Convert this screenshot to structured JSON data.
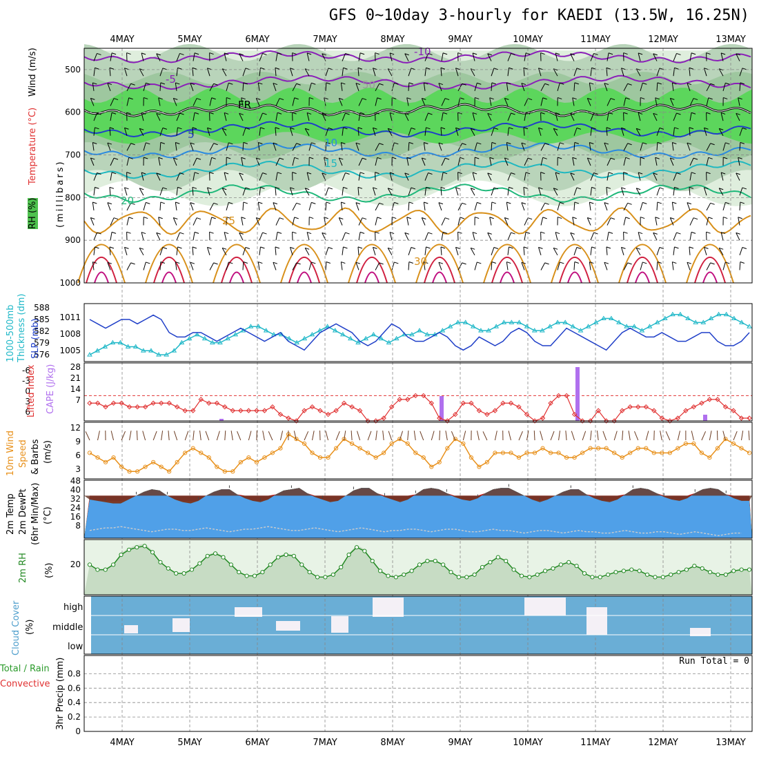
{
  "title": "GFS 0~10day 3-hourly for KAEDI (13.5W, 16.25N)",
  "date_labels": [
    "4MAY",
    "5MAY",
    "6MAY",
    "7MAY",
    "8MAY",
    "9MAY",
    "10MAY",
    "11MAY",
    "12MAY",
    "13MAY"
  ],
  "run_total": "Run Total = 0",
  "colors": {
    "rh_green": "#5cd65c",
    "rh_light": "#dfeedd",
    "rh_mid": "#b9d4ba",
    "slp": "#1f3fc8",
    "thickness": "#20b8c8",
    "lifted_index": "#e03030",
    "cape": "#b070ee",
    "wind10m": "#e8901a",
    "barb": "#000000",
    "rh2m": "#228822",
    "cloud_blue": "#6aaed6",
    "cloud_white": "#f4f0f6",
    "temp_warm": "#a01010",
    "temp_dark": "#6a3a2a"
  },
  "panels": {
    "upper": {
      "labels": [
        "Wind (m/s)",
        "Temperature (°C)",
        "RH (%)",
        "(millibars)"
      ],
      "y_ticks": [
        "500",
        "600",
        "700",
        "800",
        "900",
        "1000"
      ],
      "contour_labels": [
        "-10",
        "-5",
        "FR",
        "5",
        "10",
        "15",
        "20",
        "25",
        "30",
        "50"
      ]
    },
    "slp": {
      "labels": [
        "1000-500mb",
        "Thickness (dm)",
        "SLP (mb)"
      ],
      "left_ticks": [
        "588",
        "585",
        "582",
        "579",
        "576"
      ],
      "right_ticks": [
        "1011",
        "1008",
        "1005"
      ]
    },
    "lifted": {
      "labels": [
        "Lifted Index",
        "CAPE (J/kg)"
      ],
      "left_ticks": [
        "-6",
        "-3",
        "0",
        "3",
        "6"
      ],
      "right_ticks": [
        "28",
        "21",
        "14",
        "7"
      ]
    },
    "wind10m": {
      "labels": [
        "10m Wind",
        "Speed",
        "& Barbs",
        "(m/s)"
      ],
      "ticks": [
        "12",
        "9",
        "6",
        "3"
      ]
    },
    "temp2m": {
      "labels": [
        "2m Temp",
        "2m DewPt",
        "(6hr Min/Max)",
        "(°C)"
      ],
      "ticks": [
        "48",
        "40",
        "32",
        "24",
        "16",
        "8"
      ]
    },
    "rh2m": {
      "labels": [
        "2m RH",
        "(%)"
      ],
      "ticks": [
        "20"
      ]
    },
    "cloud": {
      "labels": [
        "Cloud Cover",
        "(%)"
      ],
      "levels": [
        "high",
        "middle",
        "low"
      ]
    },
    "precip": {
      "labels": [
        "Total / Rain",
        "Convective",
        "3hr Precip (mm)"
      ],
      "ticks": [
        "0.8",
        "0.6",
        "0.4",
        "0.2",
        "0"
      ]
    }
  },
  "chart_data": [
    {
      "type": "line",
      "title": "Sea Level Pressure",
      "ylabel": "SLP (mb)",
      "ylim": [
        1002,
        1014
      ],
      "series": [
        {
          "name": "SLP",
          "values": [
            1011,
            1010,
            1009,
            1010,
            1011,
            1011,
            1010,
            1011,
            1012,
            1011,
            1008,
            1007,
            1007,
            1008,
            1008,
            1007,
            1006,
            1007,
            1008,
            1009,
            1008,
            1007,
            1006,
            1007,
            1008,
            1006,
            1005,
            1004,
            1006,
            1008,
            1009,
            1010,
            1009,
            1008,
            1006,
            1005,
            1006,
            1008,
            1010,
            1009,
            1007,
            1006,
            1006,
            1007,
            1008,
            1007,
            1005,
            1004,
            1005,
            1007,
            1006,
            1005,
            1006,
            1008,
            1009,
            1008,
            1006,
            1005,
            1005,
            1007,
            1009,
            1008,
            1007,
            1006,
            1005,
            1004,
            1006,
            1008,
            1009,
            1008,
            1007,
            1007,
            1008,
            1007,
            1006,
            1006,
            1007,
            1008,
            1008,
            1006,
            1005,
            1005,
            1006,
            1008
          ]
        }
      ]
    },
    {
      "type": "line",
      "title": "1000-500mb Thickness",
      "ylabel": "Thickness (dm)",
      "ylim": [
        576,
        589
      ],
      "series": [
        {
          "name": "Thickness",
          "values": [
            577,
            578,
            579,
            580,
            580,
            579,
            579,
            578,
            578,
            577,
            577,
            578,
            580,
            581,
            582,
            581,
            580,
            580,
            581,
            582,
            583,
            584,
            584,
            583,
            582,
            582,
            581,
            580,
            581,
            582,
            583,
            584,
            583,
            582,
            581,
            580,
            581,
            582,
            581,
            580,
            581,
            582,
            582,
            583,
            582,
            582,
            583,
            584,
            585,
            585,
            584,
            583,
            583,
            584,
            585,
            585,
            585,
            584,
            583,
            583,
            584,
            585,
            585,
            584,
            583,
            584,
            585,
            586,
            586,
            585,
            584,
            584,
            583,
            584,
            585,
            586,
            587,
            587,
            586,
            585,
            585,
            586,
            587,
            587,
            586,
            585,
            584
          ]
        }
      ]
    },
    {
      "type": "line",
      "title": "Lifted Index",
      "ylabel": "Lifted Index",
      "ylim": [
        6,
        -8
      ],
      "series": [
        {
          "name": "Lifted Index",
          "values": [
            2,
            2,
            3,
            2,
            2,
            3,
            3,
            3,
            2,
            2,
            2,
            3,
            4,
            4,
            1,
            2,
            2,
            3,
            4,
            4,
            4,
            4,
            4,
            3,
            5,
            6,
            7,
            4,
            3,
            4,
            5,
            4,
            2,
            3,
            4,
            7,
            7,
            6,
            3,
            1,
            1,
            0,
            0,
            2,
            6,
            7,
            5,
            2,
            2,
            4,
            5,
            4,
            2,
            2,
            3,
            5,
            8,
            6,
            2,
            0,
            0,
            5,
            10,
            7,
            4,
            7,
            7,
            4,
            3,
            3,
            3,
            4,
            6,
            8,
            6,
            4,
            3,
            2,
            1,
            1,
            3,
            4,
            6,
            6
          ]
        }
      ]
    },
    {
      "type": "bar",
      "title": "CAPE",
      "ylabel": "CAPE (J/kg)",
      "ylim": [
        0,
        28
      ],
      "categories": [
        "5MAY 12Z",
        "8MAY 18Z",
        "10MAY 18Z",
        "12MAY 15Z"
      ],
      "values": [
        1,
        12,
        26,
        3
      ]
    },
    {
      "type": "line",
      "title": "10m Wind Speed",
      "ylabel": "(m/s)",
      "ylim": [
        1,
        12
      ],
      "series": [
        {
          "name": "10m Wind",
          "values": [
            6,
            5,
            4,
            5,
            3,
            2,
            2,
            3,
            4,
            3,
            2,
            4,
            6,
            7,
            6,
            5,
            3,
            2,
            2,
            4,
            5,
            4,
            5,
            6,
            7,
            10,
            9,
            8,
            6,
            5,
            5,
            7,
            9,
            8,
            7,
            6,
            5,
            6,
            8,
            9,
            8,
            6,
            5,
            3,
            4,
            7,
            9,
            8,
            5,
            3,
            4,
            6,
            6,
            6,
            5,
            6,
            6,
            7,
            6,
            6,
            5,
            5,
            6,
            7,
            7,
            7,
            6,
            5,
            6,
            7,
            7,
            6,
            6,
            6,
            7,
            8,
            8,
            6,
            5,
            7,
            9,
            8,
            7,
            6
          ]
        }
      ]
    },
    {
      "type": "area",
      "title": "2m Temperature",
      "ylabel": "(°C)",
      "ylim": [
        3,
        48
      ],
      "series": [
        {
          "name": "2m Temp",
          "values": [
            33,
            32,
            31,
            30,
            30,
            33,
            36,
            39,
            41,
            40,
            36,
            33,
            31,
            30,
            32,
            36,
            39,
            41,
            41,
            37,
            34,
            32,
            31,
            33,
            37,
            40,
            41,
            42,
            38,
            35,
            33,
            31,
            32,
            36,
            40,
            42,
            42,
            38,
            35,
            33,
            31,
            33,
            37,
            41,
            42,
            41,
            38,
            35,
            33,
            32,
            34,
            38,
            41,
            42,
            42,
            39,
            36,
            33,
            31,
            33,
            36,
            39,
            41,
            41,
            37,
            34,
            32,
            31,
            33,
            37,
            41,
            42,
            41,
            38,
            35,
            33,
            32,
            34,
            38,
            41,
            42,
            41,
            37,
            34,
            32,
            32
          ]
        },
        {
          "name": "2m DewPt",
          "values": [
            9,
            10,
            11,
            11,
            12,
            11,
            10,
            9,
            8,
            9,
            10,
            10,
            9,
            9,
            10,
            11,
            10,
            9,
            8,
            9,
            10,
            10,
            11,
            12,
            11,
            10,
            9,
            9,
            10,
            11,
            10,
            9,
            8,
            9,
            10,
            11,
            10,
            9,
            8,
            9,
            9,
            10,
            10,
            9,
            8,
            9,
            10,
            10,
            9,
            8,
            8,
            9,
            10,
            9,
            9,
            8,
            7,
            8,
            9,
            9,
            8,
            7,
            8,
            9,
            8,
            8,
            7,
            7,
            8,
            9,
            8,
            7,
            7,
            8,
            8,
            7,
            6,
            7,
            8,
            7,
            6,
            5,
            6,
            7,
            7
          ]
        }
      ]
    },
    {
      "type": "line",
      "title": "2m RH",
      "ylabel": "(%)",
      "ylim": [
        0,
        40
      ],
      "series": [
        {
          "name": "2m RH",
          "values": [
            22,
            18,
            18,
            22,
            30,
            34,
            36,
            37,
            32,
            24,
            19,
            15,
            15,
            18,
            23,
            29,
            31,
            28,
            22,
            16,
            13,
            13,
            16,
            22,
            28,
            30,
            29,
            22,
            16,
            12,
            12,
            14,
            20,
            30,
            36,
            33,
            25,
            17,
            13,
            12,
            14,
            17,
            22,
            25,
            25,
            22,
            16,
            12,
            12,
            14,
            20,
            24,
            28,
            25,
            18,
            13,
            12,
            14,
            17,
            19,
            22,
            24,
            21,
            15,
            12,
            12,
            14,
            16,
            17,
            18,
            17,
            14,
            12,
            12,
            14,
            16,
            18,
            21,
            19,
            16,
            14,
            14,
            17,
            18,
            18
          ]
        }
      ]
    },
    {
      "type": "table",
      "title": "3hr Precip",
      "ylabel": "3hr Precip (mm)",
      "ylim": [
        0,
        1
      ],
      "x": [
        "4MAY",
        "5MAY",
        "6MAY",
        "7MAY",
        "8MAY",
        "9MAY",
        "10MAY",
        "11MAY",
        "12MAY",
        "13MAY"
      ],
      "values": [
        0,
        0,
        0,
        0,
        0,
        0,
        0,
        0,
        0,
        0
      ]
    }
  ]
}
